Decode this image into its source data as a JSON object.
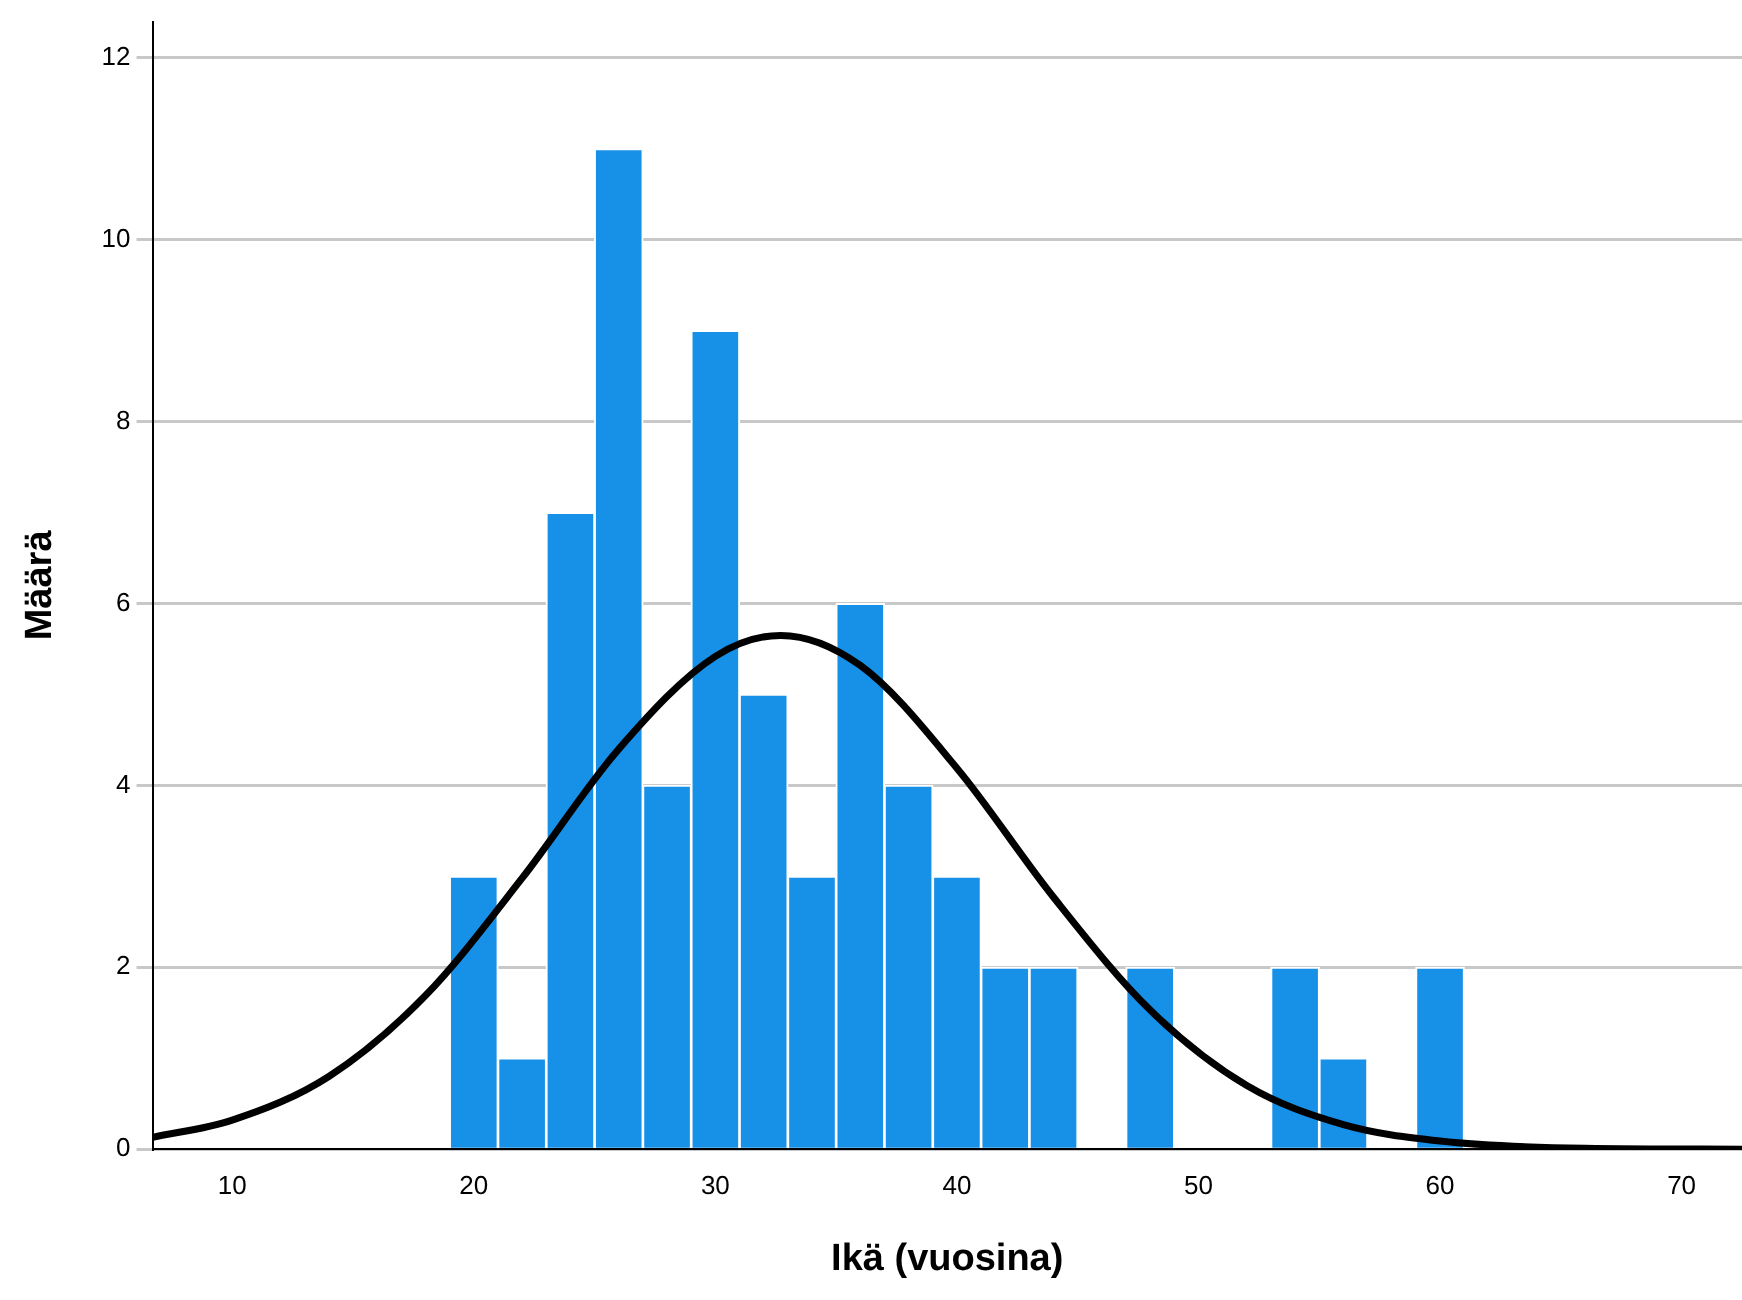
{
  "chart_data": {
    "type": "histogram",
    "xlabel": "Ikä (vuosina)",
    "ylabel": "Määrä",
    "bins": [
      19,
      21,
      23,
      25,
      27,
      29,
      31,
      33,
      35,
      37,
      39,
      41,
      43,
      45,
      47,
      49,
      51,
      53,
      55,
      57,
      59,
      61
    ],
    "series": [
      {
        "color": "#1790e8",
        "values": [
          3,
          1,
          7,
          11,
          4,
          9,
          5,
          3,
          6,
          4,
          3,
          2,
          2,
          0,
          2,
          0,
          0,
          2,
          1,
          0,
          2
        ]
      },
      {
        "type": "line",
        "color": "#000000",
        "x": [
          6.7,
          10,
          14,
          18,
          22,
          26,
          30,
          32.7,
          36,
          40,
          44,
          48,
          52,
          56,
          60,
          66,
          72.5
        ],
        "values": [
          0.13,
          0.32,
          0.8,
          1.69,
          2.98,
          4.4,
          5.42,
          5.65,
          5.32,
          4.19,
          2.77,
          1.53,
          0.7,
          0.27,
          0.09,
          0.01,
          0
        ]
      }
    ],
    "xlim": [
      6.7,
      72.5
    ],
    "xticks": [
      10,
      20,
      30,
      40,
      50,
      60,
      70
    ],
    "ylim": [
      0,
      12.4
    ],
    "yticks": [
      0,
      2,
      4,
      6,
      8,
      10,
      12
    ],
    "grid": "y",
    "legend": false,
    "marker": "none"
  }
}
